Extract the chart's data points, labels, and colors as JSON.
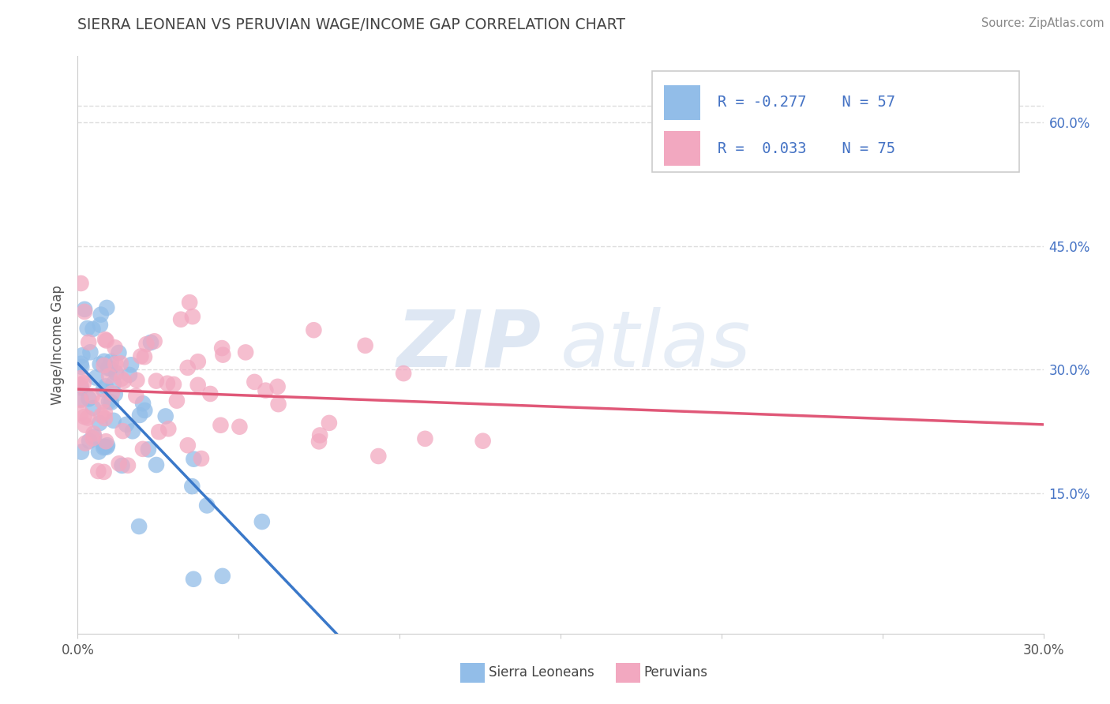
{
  "title": "SIERRA LEONEAN VS PERUVIAN WAGE/INCOME GAP CORRELATION CHART",
  "source": "Source: ZipAtlas.com",
  "ylabel": "Wage/Income Gap",
  "xlim": [
    0.0,
    0.3
  ],
  "ylim": [
    -0.02,
    0.68
  ],
  "right_yticks": [
    0.15,
    0.3,
    0.45,
    0.6
  ],
  "right_yticklabels": [
    "15.0%",
    "30.0%",
    "45.0%",
    "60.0%"
  ],
  "legend_blue_r": "-0.277",
  "legend_blue_n": "57",
  "legend_pink_r": "0.033",
  "legend_pink_n": "75",
  "legend_label1": "Sierra Leoneans",
  "legend_label2": "Peruvians",
  "blue_color": "#92BDE8",
  "pink_color": "#F2A8C0",
  "trend_blue_color": "#3A78C9",
  "trend_pink_color": "#E05878",
  "dashed_color": "#AABBD0",
  "watermark_zip_color": "#C5D5E8",
  "watermark_atlas_color": "#C5D5E8",
  "background_color": "#FFFFFF",
  "grid_color": "#DDDDDD",
  "tick_color": "#4472C4",
  "title_color": "#444444",
  "source_color": "#888888"
}
